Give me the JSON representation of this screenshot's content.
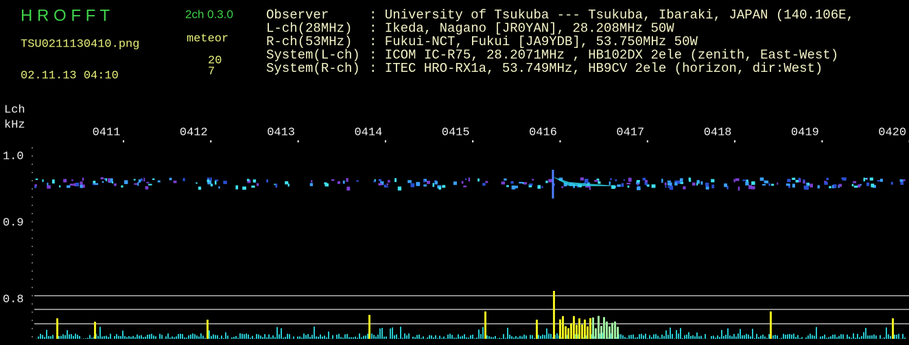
{
  "header": {
    "program": "H R O F F T",
    "version": "2ch 0.3.0",
    "filename": "TSU0211130410.png",
    "datetime": "02.11.13 04:10",
    "meteor_label": "meteor",
    "count_l": "20",
    "count_r": "7"
  },
  "info": [
    {
      "label": "Observer",
      "text": ": University of Tsukuba --- Tsukuba, Ibaraki, JAPAN (140.106E,"
    },
    {
      "label": "L-ch(28MHz)",
      "text": ": Ikeda, Nagano [JR0YAN], 28.208MHz 50W"
    },
    {
      "label": "R-ch(53MHz)",
      "text": ": Fukui-NCT, Fukui [JA9YDB], 53.750MHz 50W"
    },
    {
      "label": "System(L-ch)",
      "text": ": ICOM IC-R75, 28.2071MHz , HB102DX 2ele (zenith, East-West)"
    },
    {
      "label": "System(R-ch)",
      "text": ": ITEC HRO-RX1a, 53.749MHz, HB9CV 2ele (horizon, dir:West)"
    }
  ],
  "axis": {
    "channel": "Lch",
    "unit": "kHz",
    "times": [
      "0411",
      "0412",
      "0413",
      "0414",
      "0415",
      "0416",
      "0417",
      "0418",
      "0419",
      "0420"
    ],
    "freqs": [
      "1.0",
      "0.9",
      "0.8"
    ]
  }
}
